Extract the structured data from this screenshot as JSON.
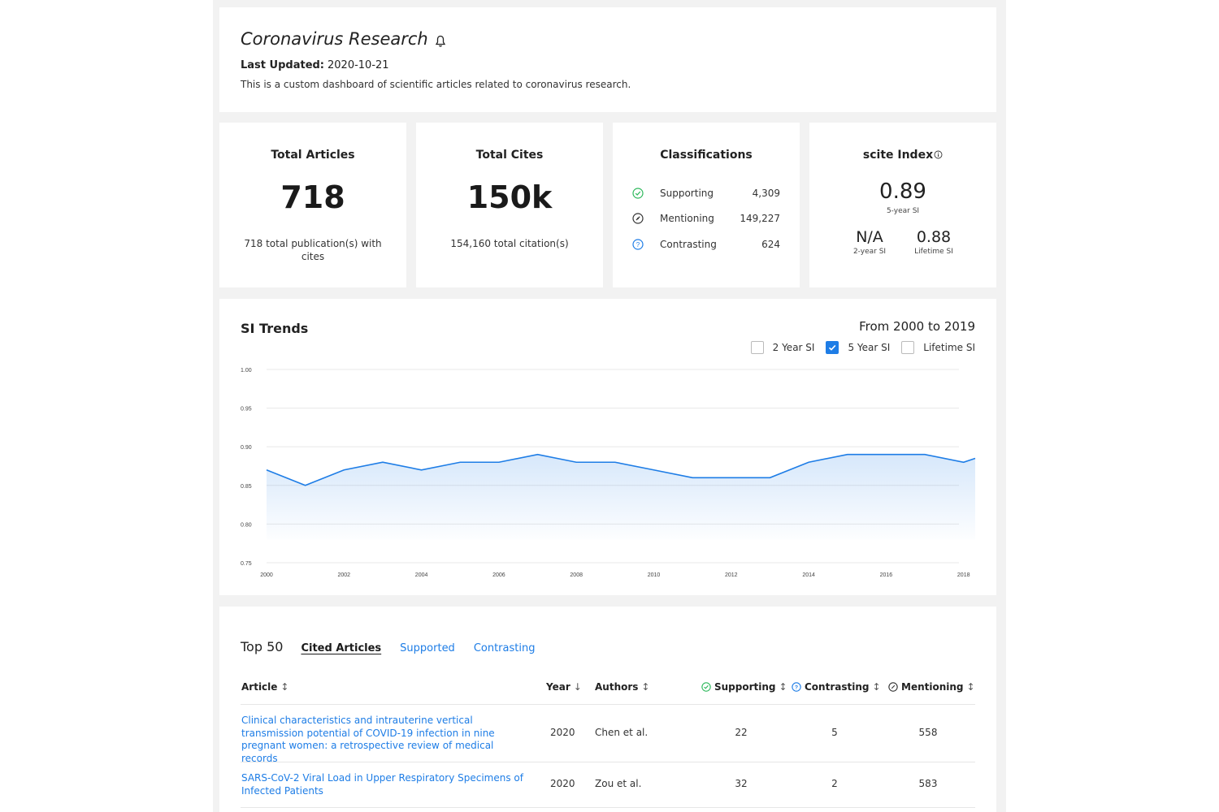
{
  "header": {
    "title": "Coronavirus Research",
    "last_updated_label": "Last Updated:",
    "last_updated_value": "2020-10-21",
    "description": "This is a custom dashboard of scientific articles related to coronavirus research."
  },
  "stats": {
    "articles": {
      "title": "Total Articles",
      "value": "718",
      "subtitle": "718 total publication(s) with cites"
    },
    "cites": {
      "title": "Total Cites",
      "value": "150k",
      "subtitle": "154,160 total citation(s)"
    },
    "classifications": {
      "title": "Classifications",
      "rows": [
        {
          "label": "Supporting",
          "value": "4,309",
          "icon": "check-circle-icon",
          "color": "#2eb85c"
        },
        {
          "label": "Mentioning",
          "value": "149,227",
          "icon": "slash-circle-icon",
          "color": "#333333"
        },
        {
          "label": "Contrasting",
          "value": "624",
          "icon": "question-circle-icon",
          "color": "#1e7de6"
        }
      ]
    },
    "scite": {
      "title": "scite Index",
      "five_year_value": "0.89",
      "five_year_label": "5-year SI",
      "two_year_value": "N/A",
      "two_year_label": "2-year SI",
      "lifetime_value": "0.88",
      "lifetime_label": "Lifetime SI"
    }
  },
  "trends": {
    "title": "SI Trends",
    "range": "From 2000 to 2019",
    "legend": [
      {
        "label": "2 Year SI",
        "checked": false
      },
      {
        "label": "5 Year SI",
        "checked": true
      },
      {
        "label": "Lifetime SI",
        "checked": false
      }
    ]
  },
  "chart_data": {
    "type": "area",
    "x": [
      2000,
      2001,
      2002,
      2003,
      2004,
      2005,
      2006,
      2007,
      2008,
      2009,
      2010,
      2011,
      2012,
      2013,
      2014,
      2015,
      2016,
      2017,
      2018,
      2019
    ],
    "series": [
      {
        "name": "5 Year SI",
        "values": [
          0.87,
          0.85,
          0.87,
          0.88,
          0.87,
          0.88,
          0.88,
          0.89,
          0.88,
          0.88,
          0.87,
          0.86,
          0.86,
          0.86,
          0.88,
          0.89,
          0.89,
          0.89,
          0.88,
          0.885
        ]
      }
    ],
    "ylim": [
      0.75,
      1.0
    ],
    "yticks": [
      "0.75",
      "0.80",
      "0.85",
      "0.90",
      "0.95",
      "1.00"
    ],
    "xticks": [
      "2000",
      "2002",
      "2004",
      "2006",
      "2008",
      "2010",
      "2012",
      "2014",
      "2016",
      "2018"
    ],
    "grid": true,
    "color": "#1e7de6"
  },
  "table": {
    "tabs": {
      "top": "Top 50",
      "cited": "Cited Articles",
      "supported": "Supported",
      "contrasting": "Contrasting"
    },
    "headers": {
      "article": "Article",
      "year": "Year",
      "authors": "Authors",
      "supporting": "Supporting",
      "contrasting": "Contrasting",
      "mentioning": "Mentioning"
    },
    "rows": [
      {
        "article": "Clinical characteristics and intrauterine vertical transmission potential of COVID-19 infection in nine pregnant women: a retrospective review of medical records",
        "year": "2020",
        "authors": "Chen et al.",
        "supporting": "22",
        "contrasting": "5",
        "mentioning": "558"
      },
      {
        "article": "SARS-CoV-2 Viral Load in Upper Respiratory Specimens of Infected Patients",
        "year": "2020",
        "authors": "Zou et al.",
        "supporting": "32",
        "contrasting": "2",
        "mentioning": "583"
      }
    ]
  }
}
